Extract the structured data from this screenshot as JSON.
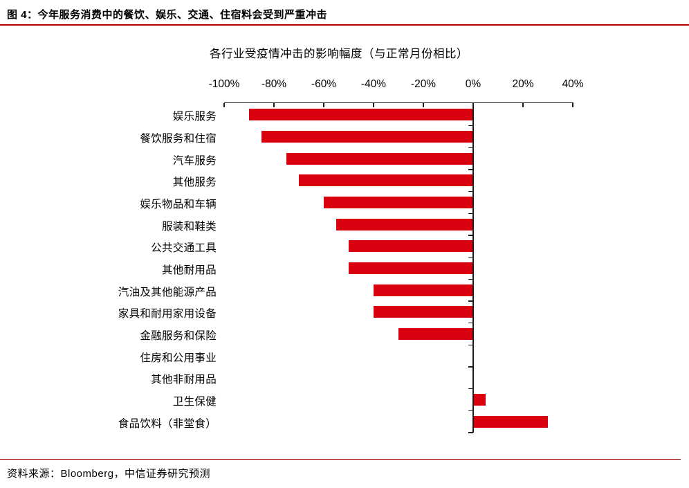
{
  "header": {
    "title": "图 4：今年服务消费中的餐饮、娱乐、交通、住宿料会受到严重冲击"
  },
  "chart_data": {
    "type": "bar",
    "orientation": "horizontal",
    "title": "各行业受疫情冲击的影响幅度（与正常月份相比）",
    "categories": [
      "娱乐服务",
      "餐饮服务和住宿",
      "汽车服务",
      "其他服务",
      "娱乐物品和车辆",
      "服装和鞋类",
      "公共交通工具",
      "其他耐用品",
      "汽油及其他能源产品",
      "家具和耐用家用设备",
      "金融服务和保险",
      "住房和公用事业",
      "其他非耐用品",
      "卫生保健",
      "食品饮料（非堂食）"
    ],
    "values": [
      -90,
      -85,
      -75,
      -70,
      -60,
      -55,
      -50,
      -50,
      -40,
      -40,
      -30,
      0,
      0,
      5,
      30
    ],
    "unit": "%",
    "x_tick_labels": [
      "-100%",
      "-80%",
      "-60%",
      "-40%",
      "-20%",
      "0%",
      "20%",
      "40%"
    ],
    "x_tick_values": [
      -100,
      -80,
      -60,
      -40,
      -20,
      0,
      20,
      40
    ],
    "xlim": [
      -100,
      40
    ],
    "axis_position": "top",
    "grid": "off",
    "legend": "none",
    "bar_color": "#d9000f"
  },
  "footer": {
    "source": "资料来源：Bloomberg，中信证券研究预测"
  },
  "colors": {
    "bar_red": "#d9000f",
    "header_rule_red": "#b20000",
    "footer_rule_red": "#a80000",
    "axis_black": "#1a1a1a"
  }
}
